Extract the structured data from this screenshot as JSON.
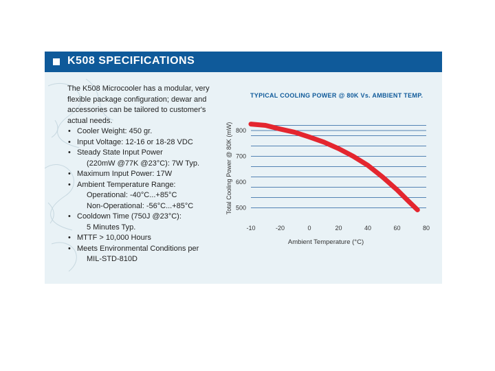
{
  "header": {
    "title": "K508 SPECIFICATIONS"
  },
  "specs": {
    "intro": "The K508 Microcooler has a modular, very flexible package configuration; dewar and accessories can be tailored to customer's actual needs.",
    "items": [
      {
        "text": "Cooler Weight: 450 gr."
      },
      {
        "text": "Input Voltage: 12-16 or 18-28 VDC"
      },
      {
        "text": "Steady State Input Power",
        "sub": [
          "(220mW @77K @23°C): 7W Typ."
        ]
      },
      {
        "text": "Maximum Input Power: 17W"
      },
      {
        "text": "Ambient Temperature Range:",
        "sub": [
          "Operational: -40°C...+85°C",
          "Non-Operational: -56°C...+85°C"
        ]
      },
      {
        "text": "Cooldown Time (750J @23°C):",
        "sub": [
          "5 Minutes Typ."
        ]
      },
      {
        "text": "MTTF > 10,000 Hours"
      },
      {
        "text": "Meets Environmental Conditions per",
        "sub": [
          "MIL-STD-810D"
        ]
      }
    ],
    "bullet": "•"
  },
  "chart_data": {
    "type": "line",
    "title": "TYPICAL COOLING POWER @ 80K Vs. AMBIENT TEMP.",
    "xlabel": "Ambient Temperature (°C)",
    "ylabel": "Total Cooling Power @ 80K (mW)",
    "xticks": [
      "-10",
      "-20",
      "0",
      "20",
      "40",
      "60",
      "80"
    ],
    "yticks": [
      "800",
      "700",
      "600",
      "500"
    ],
    "ylim": [
      480,
      840
    ],
    "grid": true,
    "series": [
      {
        "color": "#e4262f",
        "points": [
          {
            "pos": 0,
            "y": 825
          },
          {
            "pos": 0.5,
            "y": 820
          },
          {
            "pos": 1,
            "y": 806
          },
          {
            "pos": 1.5,
            "y": 793
          },
          {
            "pos": 2,
            "y": 775
          },
          {
            "pos": 2.5,
            "y": 755
          },
          {
            "pos": 3,
            "y": 730
          },
          {
            "pos": 3.5,
            "y": 700
          },
          {
            "pos": 4,
            "y": 665
          },
          {
            "pos": 4.5,
            "y": 620
          },
          {
            "pos": 5,
            "y": 570
          },
          {
            "pos": 5.4,
            "y": 525
          },
          {
            "pos": 5.7,
            "y": 492
          }
        ]
      }
    ]
  }
}
